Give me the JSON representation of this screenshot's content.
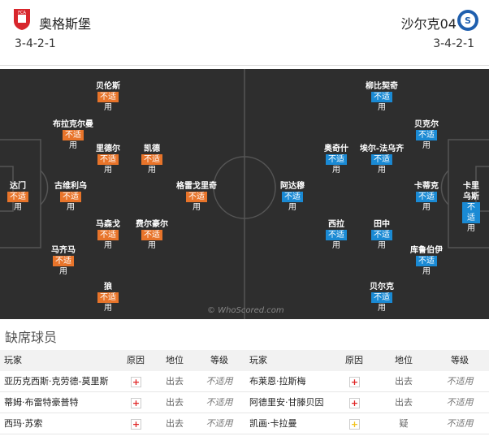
{
  "header": {
    "home": {
      "name": "奥格斯堡",
      "formation": "3-4-2-1"
    },
    "away": {
      "name": "沙尔克04",
      "formation": "3-4-2-1"
    }
  },
  "pitch": {
    "watermark": "© WhoScored.com",
    "home": {
      "badge_color": "#e8742a",
      "players": [
        {
          "name": "贝伦斯",
          "badge": "不适",
          "tail": "用"
        },
        {
          "name": "布拉克尔曼",
          "badge": "不适",
          "tail": "用"
        },
        {
          "name": "里德尔",
          "badge": "不适",
          "tail": "用"
        },
        {
          "name": "凯德",
          "badge": "不适",
          "tail": "用"
        },
        {
          "name": "达门",
          "badge": "不适",
          "tail": "用"
        },
        {
          "name": "古维利乌",
          "badge": "不适",
          "tail": "用"
        },
        {
          "name": "格雷戈里奇",
          "badge": "不适",
          "tail": "用"
        },
        {
          "name": "马森戈",
          "badge": "不适",
          "tail": "用"
        },
        {
          "name": "费尔豪尔",
          "badge": "不适",
          "tail": "用"
        },
        {
          "name": "马齐马",
          "badge": "不适",
          "tail": "用"
        },
        {
          "name": "狼",
          "badge": "不适",
          "tail": "用"
        }
      ]
    },
    "away": {
      "badge_color": "#1a8ad4",
      "players": [
        {
          "name": "柳比契奇",
          "badge": "不适",
          "tail": "用"
        },
        {
          "name": "贝克尔",
          "badge": "不适",
          "tail": "用"
        },
        {
          "name": "奥奇什",
          "badge": "不适",
          "tail": "用"
        },
        {
          "name": "埃尔-法乌齐",
          "badge": "不适",
          "tail": "用"
        },
        {
          "name": "阿达穆",
          "badge": "不适",
          "tail": "用"
        },
        {
          "name": "卡蒂克",
          "badge": "不适",
          "tail": "用"
        },
        {
          "name": "卡里乌斯",
          "badge": "不适",
          "tail": "用"
        },
        {
          "name": "西拉",
          "badge": "不适",
          "tail": "用"
        },
        {
          "name": "田中",
          "badge": "不适",
          "tail": "用"
        },
        {
          "name": "库鲁伯伊",
          "badge": "不适",
          "tail": "用"
        },
        {
          "name": "贝尔克",
          "badge": "不适",
          "tail": "用"
        }
      ]
    }
  },
  "absent": {
    "title": "缺席球员",
    "columns": [
      "玩家",
      "原因",
      "地位",
      "等级",
      "玩家",
      "原因",
      "地位",
      "等级"
    ],
    "rows": [
      {
        "home": {
          "player": "亚历克西斯·克劳德-莫里斯",
          "icon_color": "#e02424",
          "status": "出去",
          "rating": "不适用"
        },
        "away": {
          "player": "布莱恩·拉斯梅",
          "icon_color": "#e02424",
          "status": "出去",
          "rating": "不适用"
        }
      },
      {
        "home": {
          "player": "蒂姆·布雷特豪普特",
          "icon_color": "#e02424",
          "status": "出去",
          "rating": "不适用"
        },
        "away": {
          "player": "阿德里安·甘滕贝因",
          "icon_color": "#e02424",
          "status": "出去",
          "rating": "不适用"
        }
      },
      {
        "home": {
          "player": "西玛·苏索",
          "icon_color": "#e02424",
          "status": "出去",
          "rating": "不适用"
        },
        "away": {
          "player": "凯画·卡拉曼",
          "icon_color": "#f2c21b",
          "status": "疑",
          "rating": "不适用"
        }
      }
    ]
  }
}
